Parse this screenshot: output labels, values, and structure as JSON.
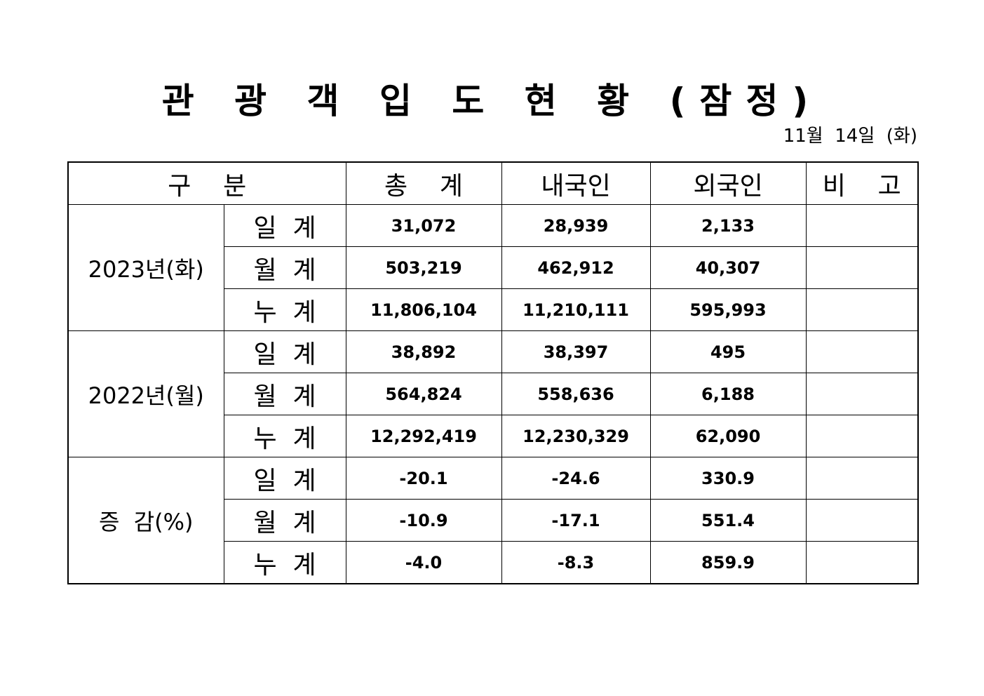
{
  "title": "관 광 객 입 도 현 황 (잠정)",
  "date": "11월  14일  (화)",
  "table": {
    "headers": {
      "category": "구    분",
      "total": "총    계",
      "domestic": "내국인",
      "foreign": "외국인",
      "note": "비    고"
    },
    "groups": [
      {
        "label": "2023년(화)",
        "rows": [
          {
            "sub": "일  계",
            "total": "31,072",
            "domestic": "28,939",
            "foreign": "2,133",
            "note": ""
          },
          {
            "sub": "월  계",
            "total": "503,219",
            "domestic": "462,912",
            "foreign": "40,307",
            "note": ""
          },
          {
            "sub": "누  계",
            "total": "11,806,104",
            "domestic": "11,210,111",
            "foreign": "595,993",
            "note": ""
          }
        ]
      },
      {
        "label": "2022년(월)",
        "rows": [
          {
            "sub": "일  계",
            "total": "38,892",
            "domestic": "38,397",
            "foreign": "495",
            "note": ""
          },
          {
            "sub": "월  계",
            "total": "564,824",
            "domestic": "558,636",
            "foreign": "6,188",
            "note": ""
          },
          {
            "sub": "누  계",
            "total": "12,292,419",
            "domestic": "12,230,329",
            "foreign": "62,090",
            "note": ""
          }
        ]
      },
      {
        "label": "증  감(%)",
        "rows": [
          {
            "sub": "일  계",
            "total": "-20.1",
            "domestic": "-24.6",
            "foreign": "330.9",
            "note": ""
          },
          {
            "sub": "월  계",
            "total": "-10.9",
            "domestic": "-17.1",
            "foreign": "551.4",
            "note": ""
          },
          {
            "sub": "누  계",
            "total": "-4.0",
            "domestic": "-8.3",
            "foreign": "859.9",
            "note": ""
          }
        ]
      }
    ]
  }
}
